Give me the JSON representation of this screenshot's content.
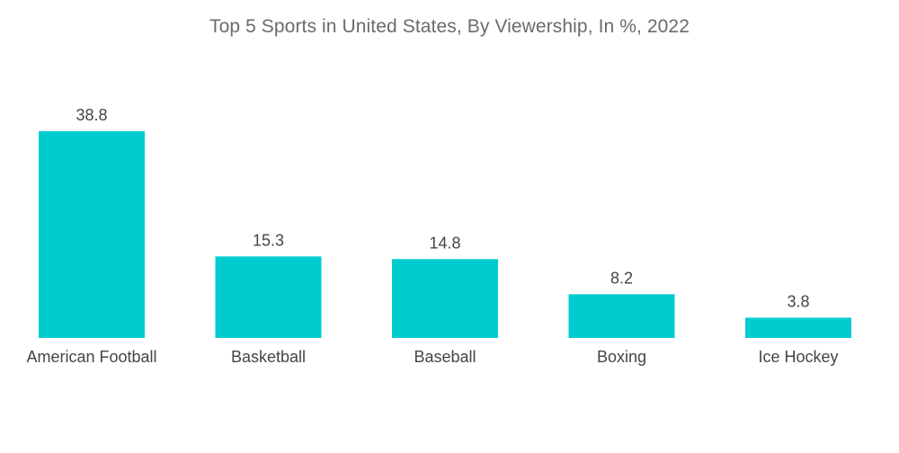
{
  "chart_data": {
    "type": "bar",
    "title": "Top 5 Sports in United States, By Viewership, In %, 2022",
    "categories": [
      "American Football",
      "Basketball",
      "Baseball",
      "Boxing",
      "Ice Hockey"
    ],
    "values": [
      38.8,
      15.3,
      14.8,
      8.2,
      3.8
    ],
    "value_labels": [
      "38.8",
      "15.3",
      "14.8",
      "8.2",
      "3.8"
    ],
    "xlabel": "",
    "ylabel": "",
    "ylim": [
      0,
      38.8
    ],
    "grid": false,
    "legend": "none",
    "bar_color": "#00ccd0"
  }
}
